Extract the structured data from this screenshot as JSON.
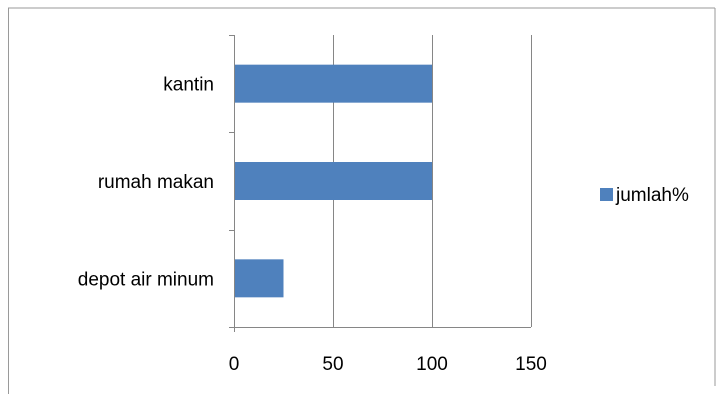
{
  "chart_data": {
    "type": "bar",
    "orientation": "horizontal",
    "categories": [
      "kantin",
      "rumah makan",
      "depot air minum"
    ],
    "series": [
      {
        "name": "jumlah%",
        "values": [
          100,
          100,
          25
        ],
        "color": "#4f81bd"
      }
    ],
    "xlim": [
      0,
      150
    ],
    "x_ticks": [
      0,
      50,
      100,
      150
    ],
    "x_tick_labels": [
      "0",
      "50",
      "100",
      "150"
    ],
    "grid": "vertical",
    "legend": {
      "position": "right",
      "entries": [
        "jumlah%"
      ]
    },
    "title": "",
    "xlabel": "",
    "ylabel": ""
  },
  "colors": {
    "bar": "#4f81bd",
    "grid": "#868686",
    "border": "#9a9a9a",
    "axis": "#868686"
  }
}
